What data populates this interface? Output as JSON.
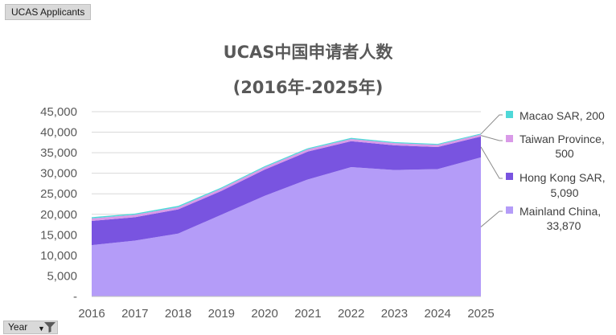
{
  "pivot_button": {
    "label": "UCAS Applicants"
  },
  "field_button": {
    "label": "Year"
  },
  "chart_data": {
    "type": "area",
    "stacked": true,
    "title": "UCAS中国申请者人数",
    "subtitle": "(2016年-2025年)",
    "x": [
      "2016",
      "2017",
      "2018",
      "2019",
      "2020",
      "2021",
      "2022",
      "2023",
      "2024",
      "2025"
    ],
    "ylim": [
      0,
      45000
    ],
    "yticks": [
      {
        "value": 0,
        "label": "-"
      },
      {
        "value": 5000,
        "label": "5,000"
      },
      {
        "value": 10000,
        "label": "10,000"
      },
      {
        "value": 15000,
        "label": "15,000"
      },
      {
        "value": 20000,
        "label": "20,000"
      },
      {
        "value": 25000,
        "label": "25,000"
      },
      {
        "value": 30000,
        "label": "30,000"
      },
      {
        "value": 35000,
        "label": "35,000"
      },
      {
        "value": 40000,
        "label": "40,000"
      },
      {
        "value": 45000,
        "label": "45,000"
      }
    ],
    "grid": true,
    "series": [
      {
        "name": "Mainland China",
        "color": "#b49cf8",
        "values": [
          12500,
          13600,
          15300,
          19900,
          24500,
          28500,
          31500,
          30800,
          31000,
          33870
        ]
      },
      {
        "name": "Hong Kong SAR",
        "color": "#7954e0",
        "values": [
          5900,
          5700,
          5900,
          5800,
          6400,
          6800,
          6300,
          6000,
          5400,
          5090
        ]
      },
      {
        "name": "Taiwan Province",
        "color": "#d99ae8",
        "values": [
          600,
          600,
          550,
          560,
          560,
          550,
          560,
          550,
          520,
          500
        ]
      },
      {
        "name": "Macao SAR",
        "color": "#4fd8d8",
        "values": [
          300,
          280,
          300,
          280,
          270,
          260,
          250,
          240,
          220,
          200
        ]
      }
    ],
    "legend": [
      {
        "series": "Macao SAR",
        "text": [
          "Macao SAR, 200"
        ]
      },
      {
        "series": "Taiwan Province",
        "text": [
          "Taiwan Province,",
          "500"
        ]
      },
      {
        "series": "Hong Kong SAR",
        "text": [
          "Hong Kong SAR,",
          "5,090"
        ]
      },
      {
        "series": "Mainland China",
        "text": [
          "Mainland China,",
          "33,870"
        ]
      }
    ],
    "legend_position": "right"
  }
}
